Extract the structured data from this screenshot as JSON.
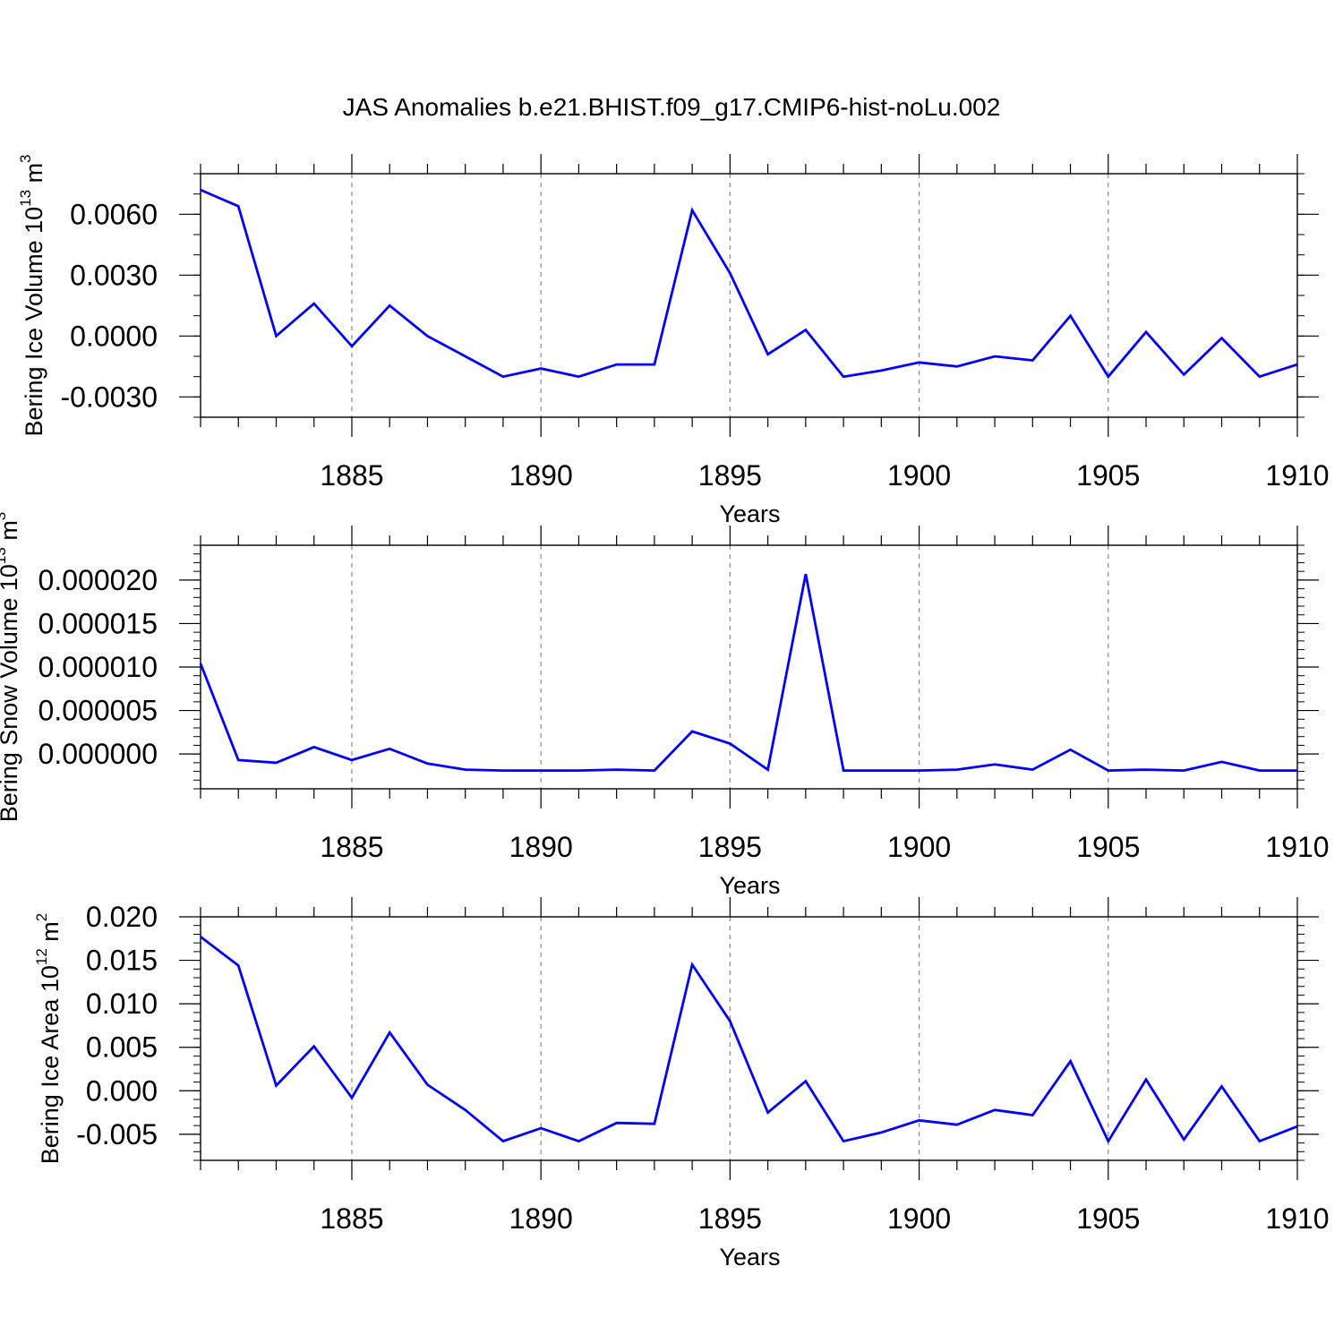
{
  "title": "JAS Anomalies b.e21.BHIST.f09_g17.CMIP6-hist-noLu.002",
  "line_color": "#0000ff",
  "chart_data": [
    {
      "type": "line",
      "ylabel": "Bering Ice Volume 10",
      "ylabel_exponent": "13",
      "ylabel_unit": "m",
      "ylabel_unit_exponent": "3",
      "xlabel": "Years",
      "xlim": [
        1881,
        1910
      ],
      "ylim": [
        -0.004,
        0.008
      ],
      "x_ticks": [
        1885,
        1890,
        1895,
        1900,
        1905,
        1910
      ],
      "x_tick_labels": [
        "1885",
        "1890",
        "1895",
        "1900",
        "1905",
        "1910"
      ],
      "y_ticks": [
        0.006,
        0.003,
        0.0,
        -0.003
      ],
      "y_tick_labels": [
        "0.0060",
        "0.0030",
        "0.0000",
        "-0.0030"
      ],
      "y_minor_step": 0.001,
      "x": [
        1881,
        1882,
        1883,
        1884,
        1885,
        1886,
        1887,
        1888,
        1889,
        1890,
        1891,
        1892,
        1893,
        1894,
        1895,
        1896,
        1897,
        1898,
        1899,
        1900,
        1901,
        1902,
        1903,
        1904,
        1905,
        1906,
        1907,
        1908,
        1909,
        1910
      ],
      "values": [
        0.0072,
        0.0064,
        0.0,
        0.0016,
        -0.0005,
        0.0015,
        0.0,
        -0.001,
        -0.002,
        -0.0016,
        -0.002,
        -0.0014,
        -0.0014,
        0.0062,
        0.0031,
        -0.0009,
        0.0003,
        -0.002,
        -0.0017,
        -0.0013,
        -0.0015,
        -0.001,
        -0.0012,
        0.001,
        -0.002,
        0.0002,
        -0.0019,
        -0.0001,
        -0.002,
        -0.0014
      ]
    },
    {
      "type": "line",
      "ylabel": "Bering Snow Volume 10",
      "ylabel_exponent": "13",
      "ylabel_unit": "m",
      "ylabel_unit_exponent": "3",
      "xlabel": "Years",
      "xlim": [
        1881,
        1910
      ],
      "ylim": [
        -4e-06,
        2.4e-05
      ],
      "x_ticks": [
        1885,
        1890,
        1895,
        1900,
        1905,
        1910
      ],
      "x_tick_labels": [
        "1885",
        "1890",
        "1895",
        "1900",
        "1905",
        "1910"
      ],
      "y_ticks": [
        2e-05,
        1.5e-05,
        1e-05,
        5e-06,
        0.0
      ],
      "y_tick_labels": [
        "0.000020",
        "0.000015",
        "0.000010",
        "0.000005",
        "0.000000"
      ],
      "y_minor_step": 1e-06,
      "x": [
        1881,
        1882,
        1883,
        1884,
        1885,
        1886,
        1887,
        1888,
        1889,
        1890,
        1891,
        1892,
        1893,
        1894,
        1895,
        1896,
        1897,
        1898,
        1899,
        1900,
        1901,
        1902,
        1903,
        1904,
        1905,
        1906,
        1907,
        1908,
        1909,
        1910
      ],
      "values": [
        1.04e-05,
        -7e-07,
        -1e-06,
        8e-07,
        -7e-07,
        6e-07,
        -1.1e-06,
        -1.8e-06,
        -1.9e-06,
        -1.9e-06,
        -1.9e-06,
        -1.8e-06,
        -1.9e-06,
        2.6e-06,
        1.2e-06,
        -1.8e-06,
        2.07e-05,
        -1.9e-06,
        -1.9e-06,
        -1.9e-06,
        -1.8e-06,
        -1.2e-06,
        -1.8e-06,
        5e-07,
        -1.9e-06,
        -1.8e-06,
        -1.9e-06,
        -9e-07,
        -1.9e-06,
        -1.9e-06
      ]
    },
    {
      "type": "line",
      "ylabel": "Bering Ice Area 10",
      "ylabel_exponent": "12",
      "ylabel_unit": "m",
      "ylabel_unit_exponent": "2",
      "xlabel": "Years",
      "xlim": [
        1881,
        1910
      ],
      "ylim": [
        -0.008,
        0.02
      ],
      "x_ticks": [
        1885,
        1890,
        1895,
        1900,
        1905,
        1910
      ],
      "x_tick_labels": [
        "1885",
        "1890",
        "1895",
        "1900",
        "1905",
        "1910"
      ],
      "y_ticks": [
        0.02,
        0.015,
        0.01,
        0.005,
        0.0,
        -0.005
      ],
      "y_tick_labels": [
        "0.020",
        "0.015",
        "0.010",
        "0.005",
        "0.000",
        "-0.005"
      ],
      "y_minor_step": 0.001,
      "x": [
        1881,
        1882,
        1883,
        1884,
        1885,
        1886,
        1887,
        1888,
        1889,
        1890,
        1891,
        1892,
        1893,
        1894,
        1895,
        1896,
        1897,
        1898,
        1899,
        1900,
        1901,
        1902,
        1903,
        1904,
        1905,
        1906,
        1907,
        1908,
        1909,
        1910
      ],
      "values": [
        0.0177,
        0.0144,
        0.0006,
        0.0051,
        -0.0008,
        0.0067,
        0.0007,
        -0.0022,
        -0.0058,
        -0.0043,
        -0.0058,
        -0.0037,
        -0.0038,
        0.0145,
        0.008,
        -0.0025,
        0.0011,
        -0.0058,
        -0.0048,
        -0.0034,
        -0.0039,
        -0.0022,
        -0.0028,
        0.0034,
        -0.0058,
        0.0013,
        -0.0056,
        0.0005,
        -0.0058,
        -0.0041
      ]
    }
  ]
}
